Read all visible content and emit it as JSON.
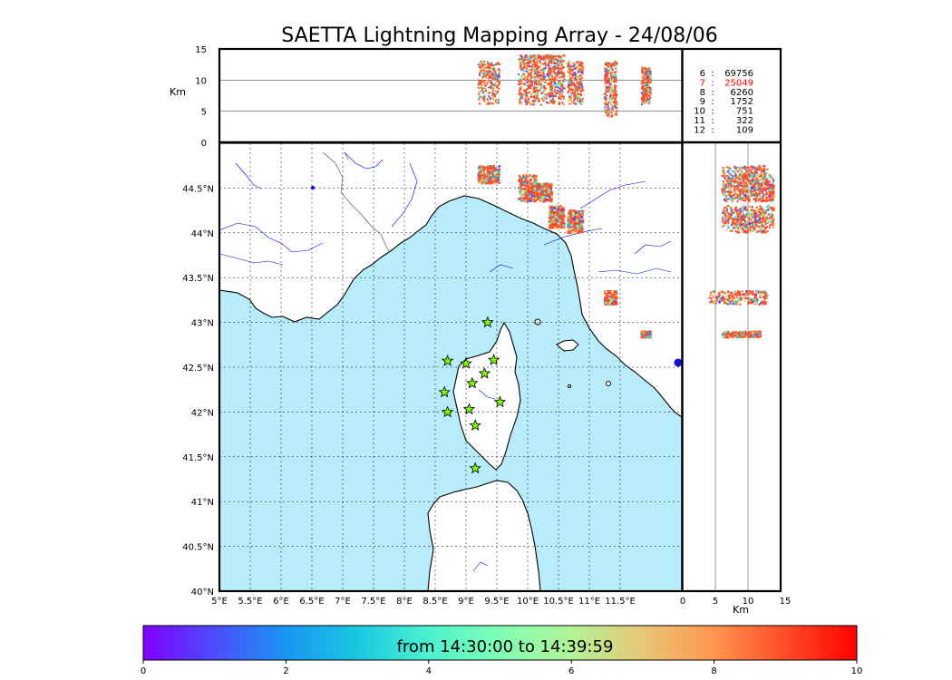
{
  "title": "SAETTA Lightning Mapping Array - 24/08/06",
  "chart_data": {
    "type": "scatter",
    "map": {
      "xlim": [
        5,
        12.5
      ],
      "ylim": [
        40,
        45
      ],
      "x_ticks": [
        "5°E",
        "5.5°E",
        "6°E",
        "6.5°E",
        "7°E",
        "7.5°E",
        "8°E",
        "8.5°E",
        "9°E",
        "9.5°E",
        "10°E",
        "10.5°E",
        "11°E",
        "11.5°E"
      ],
      "y_ticks": [
        "40°N",
        "40.5°N",
        "41°N",
        "41.5°N",
        "42°N",
        "42.5°N",
        "43°N",
        "43.5°N",
        "44°N",
        "44.5°N"
      ],
      "grid": true
    },
    "top_panel": {
      "ylabel": "Km",
      "ylim": [
        0,
        15
      ],
      "y_ticks": [
        "0",
        "5",
        "10",
        "15"
      ]
    },
    "right_panel": {
      "xlabel": "Km",
      "xlim": [
        0,
        15
      ],
      "x_ticks": [
        "0",
        "5",
        "10",
        "15"
      ]
    },
    "station_counts": [
      {
        "stations": "6",
        "sep": ":",
        "count": "69756",
        "highlight": false
      },
      {
        "stations": "7",
        "sep": ":",
        "count": "25049",
        "highlight": true
      },
      {
        "stations": "8",
        "sep": ":",
        "count": "6260",
        "highlight": false
      },
      {
        "stations": "9",
        "sep": ":",
        "count": "1752",
        "highlight": false
      },
      {
        "stations": "10",
        "sep": ":",
        "count": "751",
        "highlight": false
      },
      {
        "stations": "11",
        "sep": ":",
        "count": "322",
        "highlight": false
      },
      {
        "stations": "12",
        "sep": ":",
        "count": "109",
        "highlight": false
      }
    ],
    "stations": [
      {
        "lon": 9.35,
        "lat": 43.0
      },
      {
        "lon": 8.7,
        "lat": 42.57
      },
      {
        "lon": 9.0,
        "lat": 42.54
      },
      {
        "lon": 9.45,
        "lat": 42.58
      },
      {
        "lon": 9.3,
        "lat": 42.43
      },
      {
        "lon": 9.1,
        "lat": 42.32
      },
      {
        "lon": 8.65,
        "lat": 42.22
      },
      {
        "lon": 9.55,
        "lat": 42.11
      },
      {
        "lon": 8.7,
        "lat": 42.0
      },
      {
        "lon": 9.05,
        "lat": 42.03
      },
      {
        "lon": 9.15,
        "lat": 41.85
      },
      {
        "lon": 9.15,
        "lat": 41.37
      }
    ],
    "lightning_clusters": [
      {
        "lon": [
          9.2,
          9.55
        ],
        "lat": [
          44.55,
          44.75
        ],
        "alt": [
          6,
          13
        ]
      },
      {
        "lon": [
          9.85,
          10.15
        ],
        "lat": [
          44.35,
          44.65
        ],
        "alt": [
          6,
          14
        ]
      },
      {
        "lon": [
          10.1,
          10.4
        ],
        "lat": [
          44.35,
          44.55
        ],
        "alt": [
          6,
          14
        ]
      },
      {
        "lon": [
          10.35,
          10.6
        ],
        "lat": [
          44.05,
          44.3
        ],
        "alt": [
          6,
          14
        ]
      },
      {
        "lon": [
          10.65,
          10.9
        ],
        "lat": [
          44.0,
          44.25
        ],
        "alt": [
          6,
          13
        ]
      },
      {
        "lon": [
          11.25,
          11.45
        ],
        "lat": [
          43.2,
          43.35
        ],
        "alt": [
          4,
          13
        ]
      },
      {
        "lon": [
          11.85,
          12.0
        ],
        "lat": [
          42.83,
          42.9
        ],
        "alt": [
          6,
          12
        ]
      }
    ],
    "colorbar": {
      "label": "from 14:30:00 to 14:39:59",
      "range": [
        0,
        10
      ],
      "ticks": [
        "0",
        "2",
        "4",
        "6",
        "8",
        "10"
      ],
      "colormap": "rainbow"
    },
    "colors": {
      "sea": "#b8ecfb",
      "land": "#ffffff",
      "coastline": "#000000",
      "rivers": "#0000ff",
      "station_marker": "#7cfc00",
      "highlight_count": "#ff0000"
    }
  }
}
